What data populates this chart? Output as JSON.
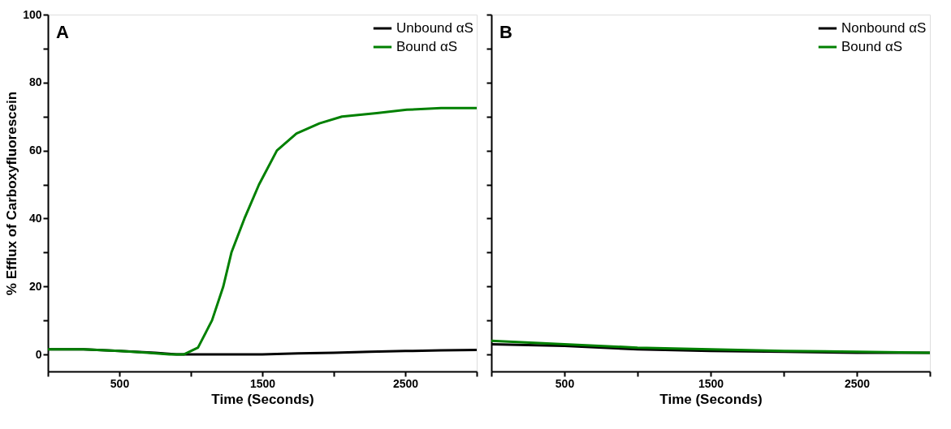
{
  "chart_data": [
    {
      "type": "line",
      "xlabel": "Time (Seconds)",
      "ylabel": "% Efflux of Carboxyfluorescein",
      "annotations": [
        "A"
      ],
      "xlim": [
        0,
        3000
      ],
      "xticks": [
        {
          "value": 0,
          "label": null
        },
        500,
        {
          "value": 1000,
          "label": null
        },
        1500,
        {
          "value": 2000,
          "label": null
        },
        2500,
        {
          "value": 3000,
          "label": null
        }
      ],
      "ylim": [
        -5,
        100
      ],
      "yticks": [
        0,
        {
          "value": 10,
          "label": null
        },
        20,
        {
          "value": 30,
          "label": null
        },
        40,
        {
          "value": 50,
          "label": null
        },
        60,
        {
          "value": 70,
          "label": null
        },
        80,
        {
          "value": 90,
          "label": null
        },
        100
      ],
      "grid": false,
      "legend": "top right",
      "marker": "none",
      "line_style": "solid",
      "series": [
        {
          "name": "Unbound αS",
          "color": "#000000",
          "x": [
            0,
            250,
            500,
            750,
            900,
            1200,
            1500,
            1750,
            2000,
            2250,
            2500,
            2750,
            3000
          ],
          "values": [
            1.5,
            1.5,
            1,
            0.5,
            0,
            0,
            0,
            0.3,
            0.5,
            0.8,
            1,
            1.2,
            1.3
          ]
        },
        {
          "name": "Bound αS",
          "color": "#008000",
          "x": [
            0,
            250,
            500,
            700,
            850,
            950,
            1050,
            1148,
            1227,
            1284,
            1375,
            1477,
            1602,
            1739,
            1900,
            2057,
            2300,
            2511,
            2750,
            3000
          ],
          "values": [
            1.5,
            1.5,
            1,
            0.5,
            0,
            0,
            2,
            10,
            20,
            30,
            40,
            50,
            60,
            65,
            68,
            70,
            71,
            72,
            72.5,
            72.5
          ]
        }
      ]
    },
    {
      "type": "line",
      "xlabel": "Time (Seconds)",
      "annotations": [
        "B"
      ],
      "tick_labels": "x",
      "xlim": [
        0,
        3000
      ],
      "xticks": [
        {
          "value": 0,
          "label": null
        },
        500,
        {
          "value": 1000,
          "label": null
        },
        1500,
        {
          "value": 2000,
          "label": null
        },
        2500,
        {
          "value": 3000,
          "label": null
        }
      ],
      "ylim": [
        -5,
        100
      ],
      "yticks": [
        0,
        {
          "value": 10,
          "label": null
        },
        20,
        {
          "value": 30,
          "label": null
        },
        40,
        {
          "value": 50,
          "label": null
        },
        60,
        {
          "value": 70,
          "label": null
        },
        80,
        {
          "value": 90,
          "label": null
        },
        100
      ],
      "grid": false,
      "legend": "top right",
      "marker": "none",
      "line_style": "solid",
      "series": [
        {
          "name": "Nonbound αS",
          "color": "#000000",
          "x": [
            0,
            500,
            1000,
            1500,
            2000,
            2500,
            3000
          ],
          "values": [
            3,
            2.5,
            1.5,
            1,
            0.8,
            0.5,
            0.5
          ]
        },
        {
          "name": "Bound αS",
          "color": "#008000",
          "x": [
            0,
            500,
            1000,
            1500,
            2000,
            2500,
            3000
          ],
          "values": [
            4,
            3,
            2,
            1.5,
            1,
            0.8,
            0.5
          ]
        }
      ]
    }
  ]
}
